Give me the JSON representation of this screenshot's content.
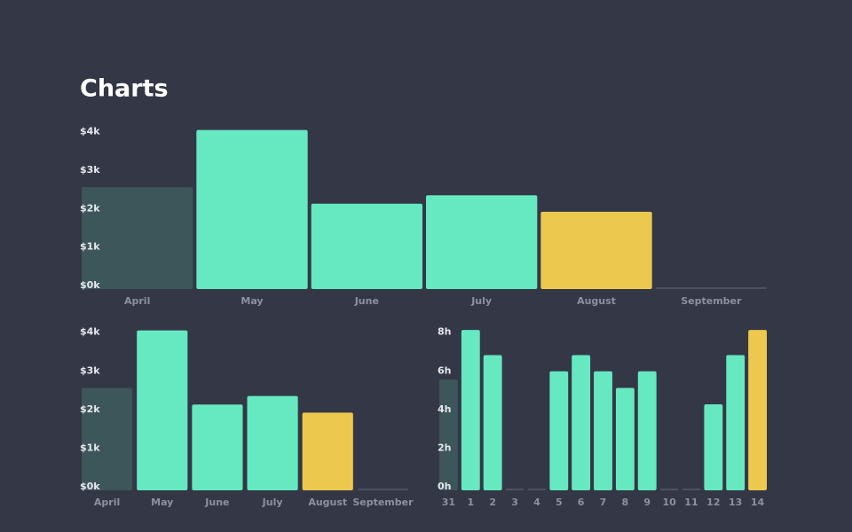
{
  "header": {
    "title": "Charts"
  },
  "chart_data": [
    {
      "type": "bar",
      "categories": [
        "April",
        "May",
        "June",
        "July",
        "August",
        "September"
      ],
      "values": [
        2.65,
        4.14,
        2.22,
        2.44,
        2.01,
        0
      ],
      "colors": [
        "#3d5659",
        "#66e8c0",
        "#66e8c0",
        "#66e8c0",
        "#edc84e",
        "#4d5262"
      ],
      "ylim": [
        0,
        4.2
      ],
      "yticks": [
        {
          "value": 0,
          "label": "$0k"
        },
        {
          "value": 1,
          "label": "$1k"
        },
        {
          "value": 2,
          "label": "$2k"
        },
        {
          "value": 3,
          "label": "$3k"
        },
        {
          "value": 4,
          "label": "$4k"
        }
      ]
    },
    {
      "type": "bar",
      "categories": [
        "April",
        "May",
        "June",
        "July",
        "August",
        "September"
      ],
      "values": [
        2.65,
        4.14,
        2.22,
        2.44,
        2.01,
        0
      ],
      "colors": [
        "#3d5659",
        "#66e8c0",
        "#66e8c0",
        "#66e8c0",
        "#edc84e",
        "#4d5262"
      ],
      "ylim": [
        0,
        4.2
      ],
      "yticks": [
        {
          "value": 0,
          "label": "$0k"
        },
        {
          "value": 1,
          "label": "$1k"
        },
        {
          "value": 2,
          "label": "$2k"
        },
        {
          "value": 3,
          "label": "$3k"
        },
        {
          "value": 4,
          "label": "$4k"
        }
      ]
    },
    {
      "type": "bar",
      "categories": [
        "31",
        "1",
        "2",
        "3",
        "4",
        "5",
        "6",
        "7",
        "8",
        "9",
        "10",
        "11",
        "12",
        "13",
        "14"
      ],
      "values": [
        5.73,
        8.3,
        7.0,
        0,
        0,
        6.16,
        7.0,
        6.16,
        5.3,
        6.16,
        0,
        0,
        4.45,
        7.0,
        8.3
      ],
      "colors": [
        "#3d5659",
        "#66e8c0",
        "#66e8c0",
        "#4d5262",
        "#4d5262",
        "#66e8c0",
        "#66e8c0",
        "#66e8c0",
        "#66e8c0",
        "#66e8c0",
        "#4d5262",
        "#4d5262",
        "#66e8c0",
        "#66e8c0",
        "#edc84e"
      ],
      "ylim": [
        0,
        8.4
      ],
      "yticks": [
        {
          "value": 0,
          "label": "0h"
        },
        {
          "value": 2,
          "label": "2h"
        },
        {
          "value": 4,
          "label": "4h"
        },
        {
          "value": 6,
          "label": "6h"
        },
        {
          "value": 8,
          "label": "8h"
        }
      ]
    }
  ]
}
